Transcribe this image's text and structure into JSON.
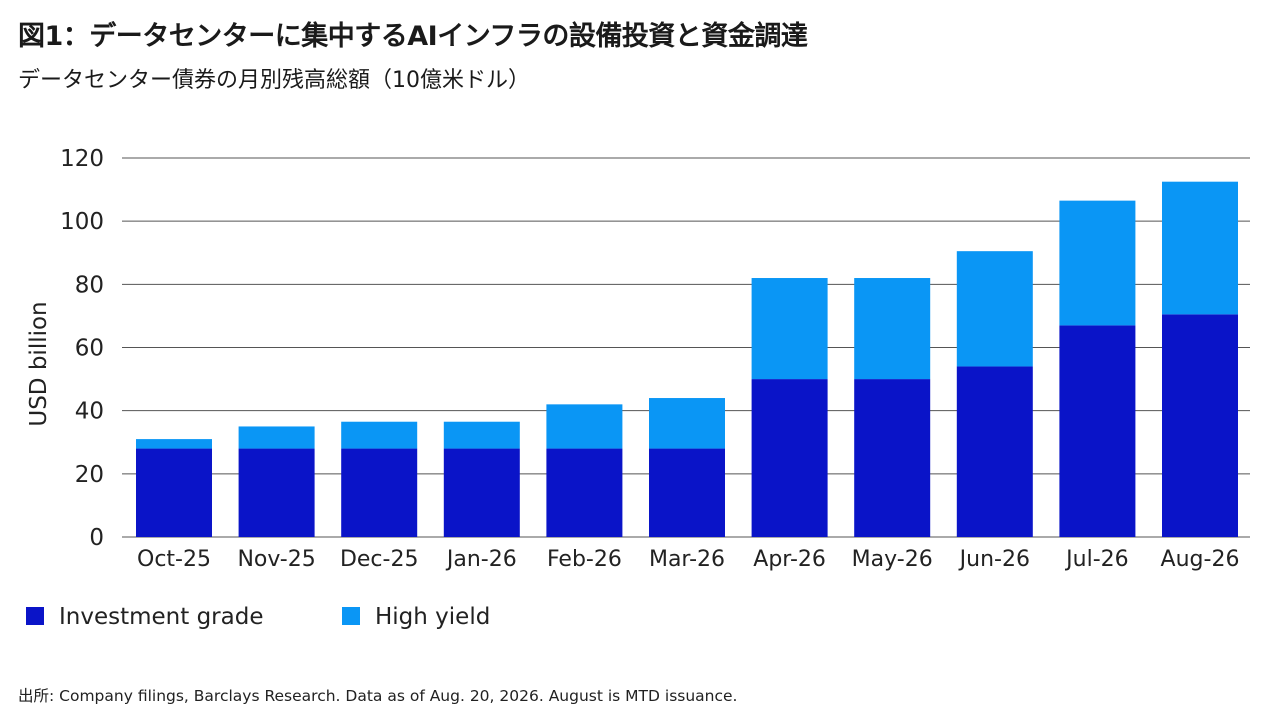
{
  "title": "図1：データセンターに集中するAIインフラの設備投資と資金調達",
  "subtitle": "データセンター債券の月別残高総額（10億米ドル）",
  "source": "出所: Company filings, Barclays Research. Data as of Aug. 20, 2026. August is MTD issuance.",
  "colors": {
    "investment_grade": "#0a14c8",
    "high_yield": "#0a96f5",
    "grid": "#555555"
  },
  "chart_data": {
    "type": "bar",
    "stacked": true,
    "ylabel": "USD billion",
    "ylim": [
      0,
      120
    ],
    "yticks": [
      0,
      20,
      40,
      60,
      80,
      100,
      120
    ],
    "grid": true,
    "legend_position": "bottom-left",
    "categories": [
      "Oct-25",
      "Nov-25",
      "Dec-25",
      "Jan-26",
      "Feb-26",
      "Mar-26",
      "Apr-26",
      "May-26",
      "Jun-26",
      "Jul-26",
      "Aug-26"
    ],
    "series": [
      {
        "name": "Investment grade",
        "values": [
          28,
          28,
          28,
          28,
          28,
          28,
          50,
          50,
          54,
          67,
          70.5
        ]
      },
      {
        "name": "High yield",
        "values": [
          3,
          7,
          8.5,
          8.5,
          14,
          16,
          32,
          32,
          36.5,
          39.5,
          42
        ]
      }
    ]
  }
}
